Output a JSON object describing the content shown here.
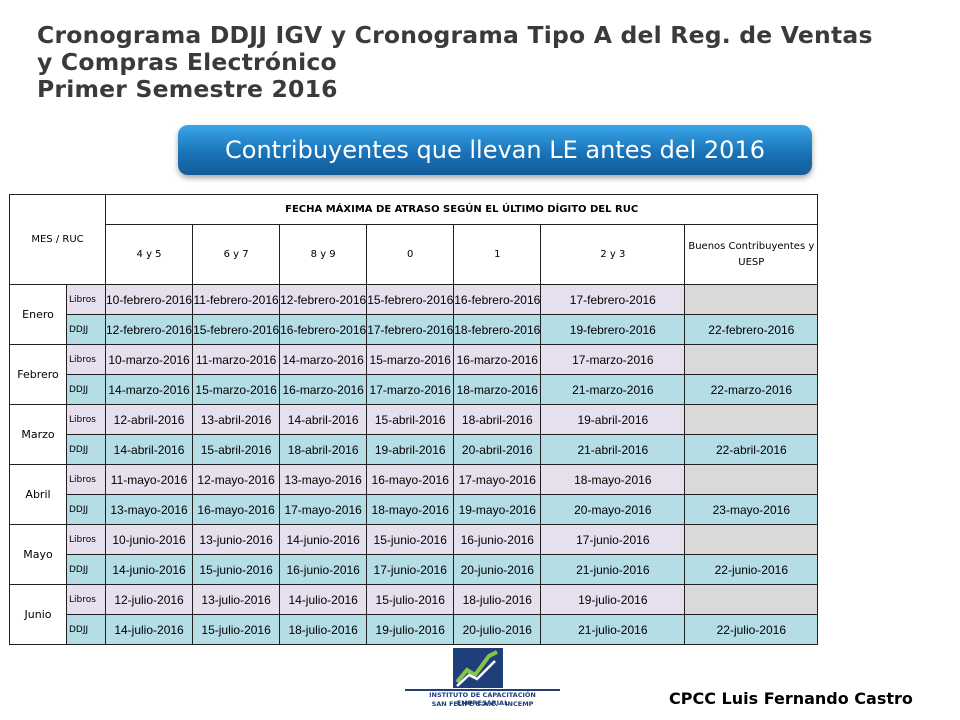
{
  "title": {
    "line1": "Cronograma DDJJ IGV y Cronograma Tipo A del Reg. de Ventas",
    "line2": "y Compras Electrónico",
    "line3": "Primer Semestre 2016"
  },
  "banner": "Contribuyentes que llevan LE antes del 2016",
  "table": {
    "corner_label": "MES /  RUC",
    "group_header": "FECHA MÁXIMA DE ATRASO SEGÚN EL ÚLTIMO DÍGITO DEL RUC",
    "columns": [
      "4 y 5",
      "6 y 7",
      "8 y 9",
      "0",
      "1",
      "2 y 3",
      "Buenos Contribuyentes y UESP"
    ],
    "months": [
      {
        "name": "Enero",
        "libros": [
          "10-febrero-2016",
          "11-febrero-2016",
          "12-febrero-2016",
          "15-febrero-2016",
          "16-febrero-2016",
          "17-febrero-2016",
          ""
        ],
        "ddjj": [
          "12-febrero-2016",
          "15-febrero-2016",
          "16-febrero-2016",
          "17-febrero-2016",
          "18-febrero-2016",
          "19-febrero-2016",
          "22-febrero-2016"
        ]
      },
      {
        "name": "Febrero",
        "libros": [
          "10-marzo-2016",
          "11-marzo-2016",
          "14-marzo-2016",
          "15-marzo-2016",
          "16-marzo-2016",
          "17-marzo-2016",
          ""
        ],
        "ddjj": [
          "14-marzo-2016",
          "15-marzo-2016",
          "16-marzo-2016",
          "17-marzo-2016",
          "18-marzo-2016",
          "21-marzo-2016",
          "22-marzo-2016"
        ]
      },
      {
        "name": "Marzo",
        "libros": [
          "12-abril-2016",
          "13-abril-2016",
          "14-abril-2016",
          "15-abril-2016",
          "18-abril-2016",
          "19-abril-2016",
          ""
        ],
        "ddjj": [
          "14-abril-2016",
          "15-abril-2016",
          "18-abril-2016",
          "19-abril-2016",
          "20-abril-2016",
          "21-abril-2016",
          "22-abril-2016"
        ]
      },
      {
        "name": "Abril",
        "libros": [
          "11-mayo-2016",
          "12-mayo-2016",
          "13-mayo-2016",
          "16-mayo-2016",
          "17-mayo-2016",
          "18-mayo-2016",
          ""
        ],
        "ddjj": [
          "13-mayo-2016",
          "16-mayo-2016",
          "17-mayo-2016",
          "18-mayo-2016",
          "19-mayo-2016",
          "20-mayo-2016",
          "23-mayo-2016"
        ]
      },
      {
        "name": "Mayo",
        "libros": [
          "10-junio-2016",
          "13-junio-2016",
          "14-junio-2016",
          "15-junio-2016",
          "16-junio-2016",
          "17-junio-2016",
          ""
        ],
        "ddjj": [
          "14-junio-2016",
          "15-junio-2016",
          "16-junio-2016",
          "17-junio-2016",
          "20-junio-2016",
          "21-junio-2016",
          "22-junio-2016"
        ]
      },
      {
        "name": "Junio",
        "libros": [
          "12-julio-2016",
          "13-julio-2016",
          "14-julio-2016",
          "15-julio-2016",
          "18-julio-2016",
          "19-julio-2016",
          ""
        ],
        "ddjj": [
          "14-julio-2016",
          "15-julio-2016",
          "18-julio-2016",
          "19-julio-2016",
          "20-julio-2016",
          "21-julio-2016",
          "22-julio-2016"
        ]
      }
    ],
    "row_types": {
      "libros": "Libros",
      "ddjj": "DDJJ"
    }
  },
  "logo": {
    "line1": "INSTITUTO DE CAPACITACIÓN EMPRESARIAL",
    "line2": "SAN FELIPE S.A.C. - INCEMP"
  },
  "author": "CPCC Luis Fernando Castro",
  "colors": {
    "libros_row": "#e6e0ee",
    "ddjj_row": "#b4dde6",
    "banner": "#1a73b8",
    "empty_cell": "#d9d9d9"
  }
}
